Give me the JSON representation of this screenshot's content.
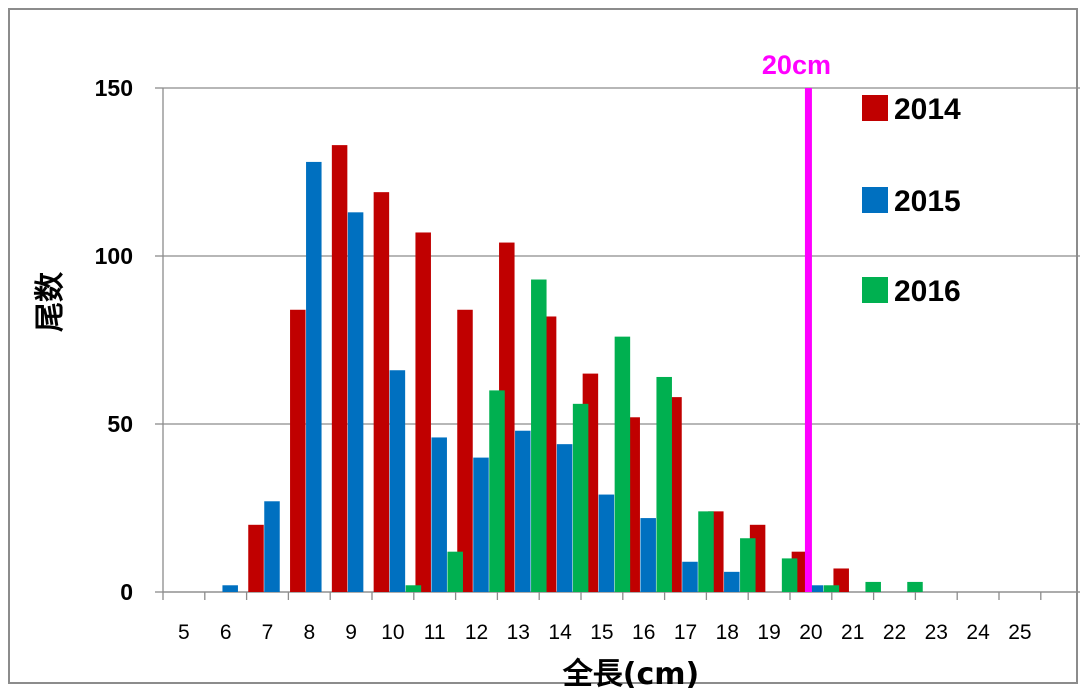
{
  "chart_data": {
    "type": "bar",
    "xlabel": "全長(cm)",
    "ylabel": "尾数",
    "ylim": [
      0,
      150
    ],
    "yticks": [
      "0",
      "50",
      "100",
      "150"
    ],
    "categories": [
      "5",
      "6",
      "7",
      "8",
      "9",
      "10",
      "11",
      "12",
      "13",
      "14",
      "15",
      "16",
      "17",
      "18",
      "19",
      "20",
      "21",
      "22",
      "23",
      "24",
      "25"
    ],
    "series": [
      {
        "name": "2014",
        "color": "#c00000",
        "values": [
          0,
          0,
          20,
          84,
          133,
          119,
          107,
          84,
          104,
          82,
          65,
          52,
          58,
          24,
          20,
          12,
          7,
          0,
          0,
          0,
          0
        ]
      },
      {
        "name": "2015",
        "color": "#0070c0",
        "values": [
          0,
          2,
          27,
          128,
          113,
          66,
          46,
          40,
          48,
          44,
          29,
          22,
          9,
          6,
          0,
          2,
          0,
          0,
          0,
          0,
          0
        ]
      },
      {
        "name": "2016",
        "color": "#00b050",
        "values": [
          0,
          0,
          0,
          0,
          0,
          2,
          12,
          60,
          93,
          56,
          76,
          64,
          24,
          16,
          10,
          2,
          3,
          3,
          0,
          0,
          0
        ]
      }
    ],
    "legend_placement": "right",
    "gridlines": "horizontal",
    "reference_line": {
      "x": 20.3,
      "label": "20cm",
      "color": "#ff00ff"
    }
  }
}
